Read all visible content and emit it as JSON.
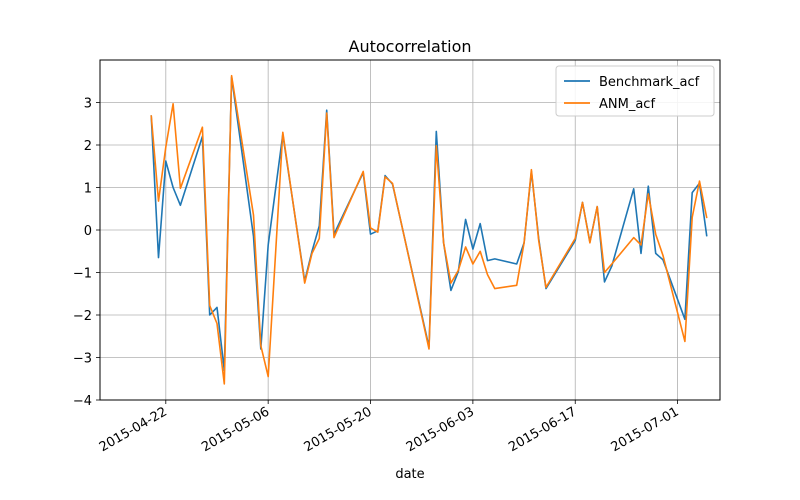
{
  "chart_data": {
    "type": "line",
    "title": "Autocorrelation",
    "xlabel": "date",
    "ylabel": "",
    "ylim": [
      -4,
      4
    ],
    "y_ticks": [
      -4,
      -3,
      -2,
      -1,
      0,
      1,
      2,
      3
    ],
    "x_ticks": [
      "2015-04-22",
      "2015-05-06",
      "2015-05-20",
      "2015-06-03",
      "2015-06-17",
      "2015-07-01"
    ],
    "x_range": [
      "2015-04-13",
      "2015-07-05"
    ],
    "grid": true,
    "legend_position": "top-right",
    "series": [
      {
        "name": "Benchmark_acf",
        "color": "#1f77b4",
        "points": [
          [
            "2015-04-20",
            2.7
          ],
          [
            "2015-04-21",
            -0.65
          ],
          [
            "2015-04-22",
            1.62
          ],
          [
            "2015-04-23",
            1.0
          ],
          [
            "2015-04-24",
            0.58
          ],
          [
            "2015-04-27",
            2.2
          ],
          [
            "2015-04-28",
            -2.0
          ],
          [
            "2015-04-29",
            -1.82
          ],
          [
            "2015-04-30",
            -3.3
          ],
          [
            "2015-05-01",
            3.6
          ],
          [
            "2015-05-04",
            -0.15
          ],
          [
            "2015-05-05",
            -2.8
          ],
          [
            "2015-05-06",
            -0.35
          ],
          [
            "2015-05-08",
            2.25
          ],
          [
            "2015-05-11",
            -1.2
          ],
          [
            "2015-05-12",
            -0.5
          ],
          [
            "2015-05-13",
            0.1
          ],
          [
            "2015-05-14",
            2.82
          ],
          [
            "2015-05-15",
            -0.1
          ],
          [
            "2015-05-19",
            1.35
          ],
          [
            "2015-05-20",
            -0.1
          ],
          [
            "2015-05-21",
            -0.02
          ],
          [
            "2015-05-22",
            1.28
          ],
          [
            "2015-05-23",
            1.08
          ],
          [
            "2015-05-28",
            -2.75
          ],
          [
            "2015-05-29",
            2.32
          ],
          [
            "2015-05-30",
            -0.3
          ],
          [
            "2015-05-31",
            -1.42
          ],
          [
            "2015-06-01",
            -0.98
          ],
          [
            "2015-06-02",
            0.25
          ],
          [
            "2015-06-03",
            -0.45
          ],
          [
            "2015-06-04",
            0.15
          ],
          [
            "2015-06-05",
            -0.72
          ],
          [
            "2015-06-06",
            -0.68
          ],
          [
            "2015-06-09",
            -0.8
          ],
          [
            "2015-06-10",
            -0.3
          ],
          [
            "2015-06-11",
            1.38
          ],
          [
            "2015-06-12",
            -0.2
          ],
          [
            "2015-06-13",
            -1.38
          ],
          [
            "2015-06-17",
            -0.25
          ],
          [
            "2015-06-18",
            0.65
          ],
          [
            "2015-06-19",
            -0.28
          ],
          [
            "2015-06-20",
            0.55
          ],
          [
            "2015-06-21",
            -1.22
          ],
          [
            "2015-06-22",
            -0.85
          ],
          [
            "2015-06-25",
            0.97
          ],
          [
            "2015-06-26",
            -0.55
          ],
          [
            "2015-06-27",
            1.03
          ],
          [
            "2015-06-28",
            -0.55
          ],
          [
            "2015-06-29",
            -0.7
          ],
          [
            "2015-07-02",
            -2.1
          ],
          [
            "2015-07-03",
            0.88
          ],
          [
            "2015-07-04",
            1.1
          ],
          [
            "2015-07-05",
            -0.15
          ]
        ]
      },
      {
        "name": "ANM_acf",
        "color": "#ff7f0e",
        "points": [
          [
            "2015-04-20",
            2.7
          ],
          [
            "2015-04-21",
            0.68
          ],
          [
            "2015-04-22",
            1.95
          ],
          [
            "2015-04-23",
            2.97
          ],
          [
            "2015-04-24",
            0.98
          ],
          [
            "2015-04-27",
            2.42
          ],
          [
            "2015-04-28",
            -1.78
          ],
          [
            "2015-04-29",
            -2.2
          ],
          [
            "2015-04-30",
            -3.62
          ],
          [
            "2015-05-01",
            3.63
          ],
          [
            "2015-05-04",
            0.35
          ],
          [
            "2015-05-05",
            -2.72
          ],
          [
            "2015-05-06",
            -3.45
          ],
          [
            "2015-05-08",
            2.3
          ],
          [
            "2015-05-11",
            -1.25
          ],
          [
            "2015-05-12",
            -0.55
          ],
          [
            "2015-05-13",
            -0.2
          ],
          [
            "2015-05-14",
            2.75
          ],
          [
            "2015-05-15",
            -0.18
          ],
          [
            "2015-05-19",
            1.38
          ],
          [
            "2015-05-20",
            0.05
          ],
          [
            "2015-05-21",
            -0.05
          ],
          [
            "2015-05-22",
            1.25
          ],
          [
            "2015-05-23",
            1.1
          ],
          [
            "2015-05-28",
            -2.8
          ],
          [
            "2015-05-29",
            1.98
          ],
          [
            "2015-05-30",
            -0.3
          ],
          [
            "2015-05-31",
            -1.25
          ],
          [
            "2015-06-01",
            -0.95
          ],
          [
            "2015-06-02",
            -0.4
          ],
          [
            "2015-06-03",
            -0.8
          ],
          [
            "2015-06-04",
            -0.5
          ],
          [
            "2015-06-05",
            -1.05
          ],
          [
            "2015-06-06",
            -1.38
          ],
          [
            "2015-06-09",
            -1.3
          ],
          [
            "2015-06-10",
            -0.3
          ],
          [
            "2015-06-11",
            1.42
          ],
          [
            "2015-06-12",
            -0.25
          ],
          [
            "2015-06-13",
            -1.35
          ],
          [
            "2015-06-17",
            -0.2
          ],
          [
            "2015-06-18",
            0.65
          ],
          [
            "2015-06-19",
            -0.3
          ],
          [
            "2015-06-20",
            0.55
          ],
          [
            "2015-06-21",
            -1.0
          ],
          [
            "2015-06-22",
            -0.8
          ],
          [
            "2015-06-25",
            -0.18
          ],
          [
            "2015-06-26",
            -0.35
          ],
          [
            "2015-06-27",
            0.85
          ],
          [
            "2015-06-28",
            -0.1
          ],
          [
            "2015-06-29",
            -0.6
          ],
          [
            "2015-07-02",
            -2.62
          ],
          [
            "2015-07-03",
            0.3
          ],
          [
            "2015-07-04",
            1.15
          ],
          [
            "2015-07-05",
            0.28
          ]
        ]
      }
    ]
  }
}
